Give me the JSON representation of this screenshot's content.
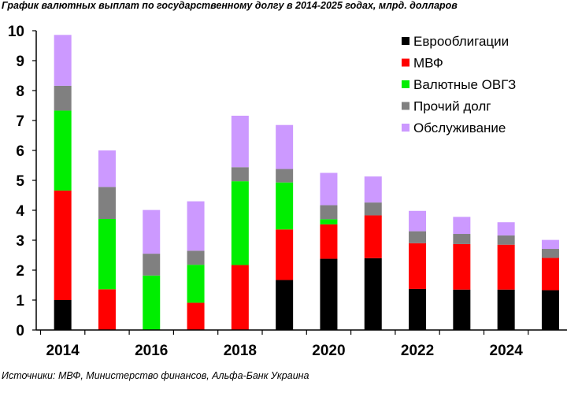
{
  "chart_data": {
    "type": "bar",
    "stacked": true,
    "title": "График валютных выплат по государственному долгу в 2014-2025 годах, млрд. долларов",
    "source": "Источники: МВФ, Министерство финансов, Альфа-Банк Украина",
    "categories": [
      "2014",
      "2015",
      "2016",
      "2017",
      "2018",
      "2019",
      "2020",
      "2021",
      "2022",
      "2023",
      "2024",
      "2025"
    ],
    "x_tick_labels": [
      "2014",
      "",
      "2016",
      "",
      "2018",
      "",
      "2020",
      "",
      "2022",
      "",
      "2024",
      ""
    ],
    "ylim": [
      0,
      10
    ],
    "yticks": [
      0,
      1,
      2,
      3,
      4,
      5,
      6,
      7,
      8,
      9,
      10
    ],
    "xlabel": "",
    "ylabel": "",
    "grid": false,
    "legend_position": "top-right",
    "series": [
      {
        "name": "Еврооблигации",
        "color": "#000000",
        "values": [
          1.0,
          0.0,
          0.0,
          0.0,
          0.0,
          1.67,
          2.38,
          2.4,
          1.37,
          1.35,
          1.35,
          1.33
        ]
      },
      {
        "name": "МВФ",
        "color": "#ff0000",
        "values": [
          3.66,
          1.36,
          0.0,
          0.91,
          2.17,
          1.69,
          1.15,
          1.43,
          1.53,
          1.52,
          1.5,
          1.08
        ]
      },
      {
        "name": "Валютные ОВГЗ",
        "color": "#00ee00",
        "values": [
          2.67,
          2.35,
          1.82,
          1.27,
          2.8,
          1.57,
          0.17,
          0.0,
          0.0,
          0.0,
          0.0,
          0.0
        ]
      },
      {
        "name": "Прочий долг",
        "color": "#808080",
        "values": [
          0.83,
          1.07,
          0.73,
          0.47,
          0.47,
          0.45,
          0.47,
          0.43,
          0.4,
          0.34,
          0.31,
          0.3
        ]
      },
      {
        "name": "Обслуживание",
        "color": "#cc99ff",
        "values": [
          1.7,
          1.22,
          1.46,
          1.65,
          1.72,
          1.47,
          1.08,
          0.87,
          0.68,
          0.57,
          0.44,
          0.3
        ]
      }
    ]
  }
}
